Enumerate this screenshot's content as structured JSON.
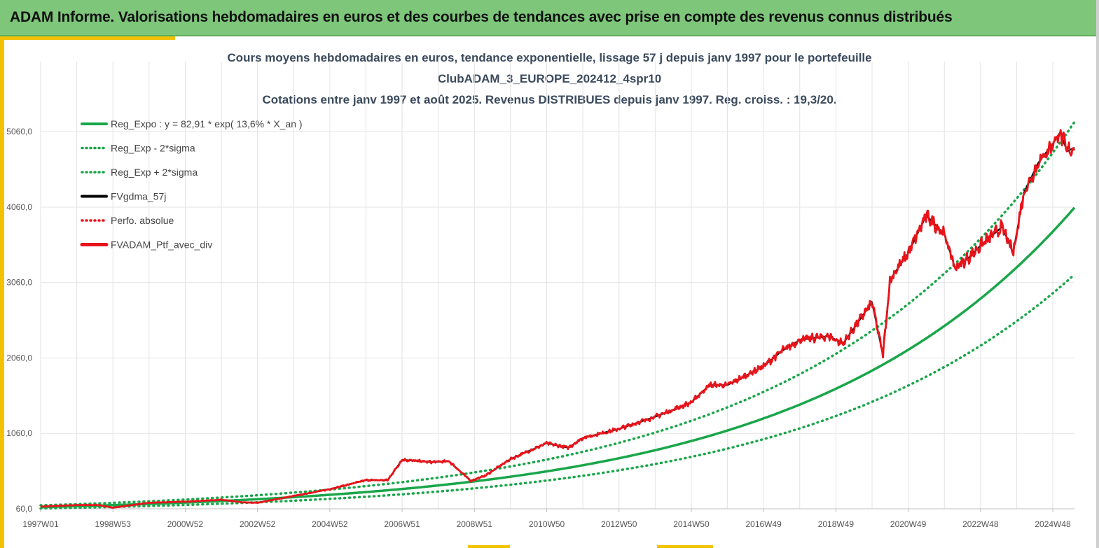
{
  "banner": {
    "title": "ADAM Informe. Valorisations hebdomadaires en euros et des courbes de tendances avec prise en compte des revenus connus distribués"
  },
  "colors": {
    "banner": "#7dc67a",
    "accent": "#f2c200",
    "trend": "#1aa64a",
    "price": "#e8141b",
    "smooth": "#000000"
  },
  "chart_data": {
    "type": "line",
    "title_lines": [
      "Cours moyens hebdomadaires  en euros, tendance exponentielle, lissage 57 j depuis janv 1997 pour le portefeuille",
      "ClubADAM_3_EUROPE_202412_4spr10",
      "Cotations  entre janv 1997 et août 2025. Revenus DISTRIBUES depuis janv 1997. Reg. croiss. : 19,3/20."
    ],
    "x_range": [
      1997.0,
      2025.6
    ],
    "x_ticks": [
      {
        "label": "1997W01",
        "year": 1997.0
      },
      {
        "label": "1998W53",
        "year": 1999.0
      },
      {
        "label": "2000W52",
        "year": 2001.0
      },
      {
        "label": "2002W52",
        "year": 2003.0
      },
      {
        "label": "2004W52",
        "year": 2005.0
      },
      {
        "label": "2006W51",
        "year": 2007.0
      },
      {
        "label": "2008W51",
        "year": 2009.0
      },
      {
        "label": "2010W50",
        "year": 2011.0
      },
      {
        "label": "2012W50",
        "year": 2013.0
      },
      {
        "label": "2014W50",
        "year": 2015.0
      },
      {
        "label": "2016W49",
        "year": 2017.0
      },
      {
        "label": "2018W49",
        "year": 2019.0
      },
      {
        "label": "2020W49",
        "year": 2021.0
      },
      {
        "label": "2022W48",
        "year": 2023.0
      },
      {
        "label": "2024W48",
        "year": 2025.0
      }
    ],
    "y_range": [
      60,
      5990
    ],
    "y_ticks": [
      {
        "label": "60,0",
        "value": 60
      },
      {
        "label": "1060,0",
        "value": 1060
      },
      {
        "label": "2060,0",
        "value": 2060
      },
      {
        "label": "3060,0",
        "value": 3060
      },
      {
        "label": "4060,0",
        "value": 4060
      },
      {
        "label": "5060,0",
        "value": 5060
      }
    ],
    "grid": true,
    "legend_position": "top-left",
    "regression": {
      "a": 82.91,
      "rate": 0.136,
      "sigma_factor": 1.28
    },
    "series": [
      {
        "name": "Reg_Expo : y = 82,91 * exp( 13,6% *  X_an )",
        "style": "solid-green"
      },
      {
        "name": "Reg_Exp - 2*sigma",
        "style": "dotted-green"
      },
      {
        "name": "Reg_Exp + 2*sigma",
        "style": "dotted-green"
      },
      {
        "name": "FVgdma_57j",
        "style": "solid-black"
      },
      {
        "name": "Perfo. absolue",
        "style": "dotted-red"
      },
      {
        "name": "FVADAM_Ptf_avec_div",
        "style": "solid-red-thick"
      }
    ],
    "price_series": {
      "year": [
        1997.0,
        1998.0,
        1998.6,
        1999.0,
        2000.0,
        2001.0,
        2002.0,
        2002.6,
        2003.0,
        2004.0,
        2005.0,
        2006.0,
        2006.6,
        2007.0,
        2007.8,
        2008.3,
        2008.9,
        2009.3,
        2010.0,
        2011.0,
        2011.6,
        2012.0,
        2013.0,
        2014.0,
        2015.0,
        2015.5,
        2016.0,
        2017.0,
        2017.5,
        2018.0,
        2018.8,
        2019.2,
        2020.0,
        2020.3,
        2020.5,
        2021.0,
        2021.5,
        2022.0,
        2022.3,
        2022.7,
        2023.0,
        2023.6,
        2023.9,
        2024.2,
        2024.6,
        2025.0,
        2025.2,
        2025.4,
        2025.6
      ],
      "value": [
        90,
        110,
        110,
        75,
        140,
        155,
        180,
        145,
        140,
        230,
        320,
        440,
        440,
        710,
        680,
        690,
        430,
        500,
        720,
        930,
        870,
        1000,
        1120,
        1280,
        1470,
        1700,
        1700,
        1950,
        2150,
        2300,
        2350,
        2250,
        2800,
        2100,
        3100,
        3450,
        3950,
        3700,
        3250,
        3400,
        3550,
        3800,
        3450,
        4250,
        4650,
        4900,
        5050,
        4800,
        4850
      ]
    }
  }
}
